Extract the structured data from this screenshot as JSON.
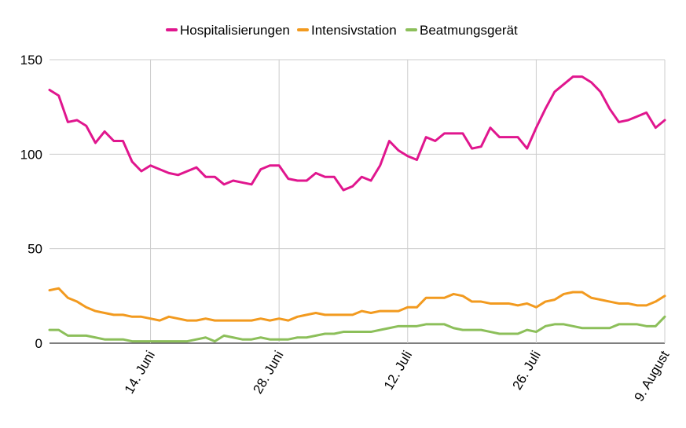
{
  "chart_data": {
    "type": "line",
    "title": "",
    "xlabel": "",
    "ylabel": "",
    "ylim": [
      0,
      150
    ],
    "yticks": [
      0,
      50,
      100,
      150
    ],
    "grid": true,
    "legend_position": "top",
    "start_date": "2020-06-03",
    "xtick_labels": [
      {
        "label": "14. Juni",
        "day_index": 11
      },
      {
        "label": "28. Juni",
        "day_index": 25
      },
      {
        "label": "12. Juli",
        "day_index": 39
      },
      {
        "label": "26. Juli",
        "day_index": 53
      },
      {
        "label": "9. August",
        "day_index": 67
      }
    ],
    "series": [
      {
        "name": "Hospitalisierungen",
        "color": "#e0168e",
        "values": [
          134,
          131,
          117,
          118,
          115,
          106,
          112,
          107,
          107,
          96,
          91,
          94,
          92,
          90,
          89,
          91,
          93,
          88,
          88,
          84,
          86,
          85,
          84,
          92,
          94,
          94,
          87,
          86,
          86,
          90,
          88,
          88,
          81,
          83,
          88,
          86,
          94,
          107,
          102,
          99,
          97,
          109,
          107,
          111,
          111,
          111,
          103,
          104,
          114,
          109,
          109,
          109,
          103,
          114,
          124,
          133,
          137,
          141,
          141,
          138,
          133,
          124,
          117,
          118,
          120,
          122,
          114,
          118
        ]
      },
      {
        "name": "Intensivstation",
        "color": "#f29a1f",
        "values": [
          28,
          29,
          24,
          22,
          19,
          17,
          16,
          15,
          15,
          14,
          14,
          13,
          12,
          14,
          13,
          12,
          12,
          13,
          12,
          12,
          12,
          12,
          12,
          13,
          12,
          13,
          12,
          14,
          15,
          16,
          15,
          15,
          15,
          15,
          17,
          16,
          17,
          17,
          17,
          19,
          19,
          24,
          24,
          24,
          26,
          25,
          22,
          22,
          21,
          21,
          21,
          20,
          21,
          19,
          22,
          23,
          26,
          27,
          27,
          24,
          23,
          22,
          21,
          21,
          20,
          20,
          22,
          25
        ]
      },
      {
        "name": "Beatmungsgerät",
        "color": "#8cbf5a",
        "values": [
          7,
          7,
          4,
          4,
          4,
          3,
          2,
          2,
          2,
          1,
          1,
          1,
          1,
          1,
          1,
          1,
          2,
          3,
          1,
          4,
          3,
          2,
          2,
          3,
          2,
          2,
          2,
          3,
          3,
          4,
          5,
          5,
          6,
          6,
          6,
          6,
          7,
          8,
          9,
          9,
          9,
          10,
          10,
          10,
          8,
          7,
          7,
          7,
          6,
          5,
          5,
          5,
          7,
          6,
          9,
          10,
          10,
          9,
          8,
          8,
          8,
          8,
          10,
          10,
          10,
          9,
          9,
          14
        ]
      }
    ]
  }
}
